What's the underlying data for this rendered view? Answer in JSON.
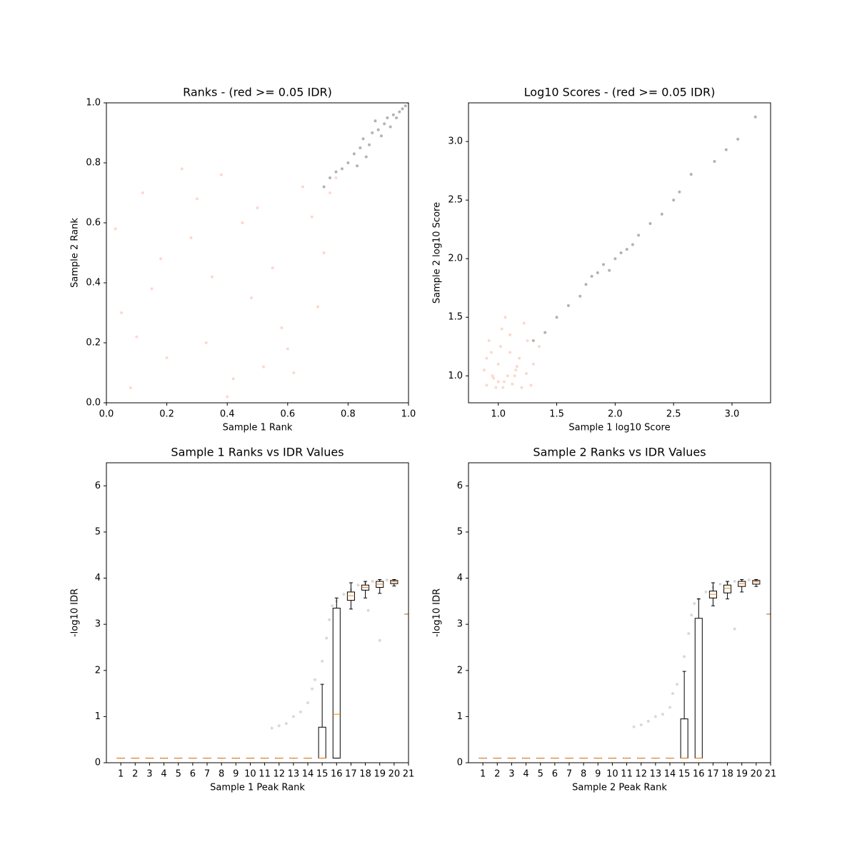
{
  "chart_data": [
    {
      "type": "scatter",
      "title": "Ranks - (red >= 0.05 IDR)",
      "xlabel": "Sample 1 Rank",
      "ylabel": "Sample 2 Rank",
      "xlim": [
        0,
        1
      ],
      "ylim": [
        0,
        1
      ],
      "xticks": [
        {
          "value": 0,
          "label": "0.0"
        },
        0.2,
        0.4,
        0.6,
        0.8,
        {
          "value": 1,
          "label": "1.0"
        }
      ],
      "yticks": [
        {
          "value": 0,
          "label": "0.0"
        },
        0.2,
        0.4,
        0.6,
        0.8,
        {
          "value": 1,
          "label": "1.0"
        }
      ],
      "series": [
        {
          "color": "#fa8f6f",
          "alpha": 0.35,
          "x": [
            0.05,
            0.12,
            0.2,
            0.28,
            0.35,
            0.42,
            0.5,
            0.58,
            0.65,
            0.72,
            0.08,
            0.15,
            0.25,
            0.33,
            0.45,
            0.55,
            0.62,
            0.7,
            0.76,
            0.03,
            0.18,
            0.3,
            0.4,
            0.48,
            0.6,
            0.68,
            0.1,
            0.38,
            0.52,
            0.74
          ],
          "values": [
            0.3,
            0.7,
            0.15,
            0.55,
            0.42,
            0.08,
            0.65,
            0.25,
            0.72,
            0.5,
            0.05,
            0.38,
            0.78,
            0.2,
            0.6,
            0.45,
            0.1,
            0.32,
            0.75,
            0.58,
            0.48,
            0.68,
            0.02,
            0.35,
            0.18,
            0.62,
            0.22,
            0.76,
            0.12,
            0.7
          ]
        },
        {
          "color": "#000000",
          "alpha": 0.3,
          "x": [
            0.72,
            0.74,
            0.76,
            0.78,
            0.8,
            0.82,
            0.84,
            0.85,
            0.87,
            0.88,
            0.9,
            0.91,
            0.92,
            0.93,
            0.94,
            0.95,
            0.96,
            0.97,
            0.98,
            0.99,
            0.86,
            0.89,
            0.83,
            1.0
          ],
          "values": [
            0.72,
            0.75,
            0.77,
            0.78,
            0.8,
            0.83,
            0.85,
            0.88,
            0.86,
            0.9,
            0.91,
            0.89,
            0.93,
            0.95,
            0.92,
            0.96,
            0.95,
            0.97,
            0.98,
            0.99,
            0.82,
            0.94,
            0.79,
            1.0
          ]
        }
      ]
    },
    {
      "type": "scatter",
      "title": "Log10 Scores - (red >= 0.05 IDR)",
      "xlabel": "Sample 1 log10 Score",
      "ylabel": "Sample 2 log10 Score",
      "xlim": [
        0.745,
        3.33
      ],
      "ylim": [
        0.77,
        3.33
      ],
      "xticks": [
        {
          "value": 1,
          "label": "1.0"
        },
        1.5,
        {
          "value": 2,
          "label": "2.0"
        },
        2.5,
        {
          "value": 3,
          "label": "3.0"
        }
      ],
      "yticks": [
        {
          "value": 1,
          "label": "1.0"
        },
        1.5,
        {
          "value": 2,
          "label": "2.0"
        },
        2.5,
        {
          "value": 3,
          "label": "3.0"
        }
      ],
      "series": [
        {
          "color": "#fa8f6f",
          "alpha": 0.35,
          "x": [
            0.9,
            0.95,
            1.0,
            1.05,
            1.1,
            1.15,
            1.2,
            1.25,
            1.3,
            0.92,
            0.98,
            1.03,
            1.08,
            1.12,
            1.18,
            1.22,
            0.88,
            0.94,
            1.0,
            1.06,
            1.14,
            1.28,
            1.35,
            0.96,
            1.02,
            1.1,
            1.16,
            0.9,
            1.04,
            1.24
          ],
          "values": [
            0.92,
            1.0,
            1.1,
            0.95,
            1.2,
            1.05,
            0.9,
            1.3,
            1.1,
            1.3,
            0.9,
            1.4,
            1.0,
            0.93,
            1.15,
            1.45,
            1.05,
            1.2,
            0.95,
            1.5,
            1.0,
            0.92,
            1.25,
            0.98,
            1.25,
            1.35,
            1.08,
            1.15,
            0.9,
            1.02
          ]
        },
        {
          "color": "#000000",
          "alpha": 0.3,
          "x": [
            1.3,
            1.4,
            1.5,
            1.6,
            1.7,
            1.75,
            1.8,
            1.85,
            1.9,
            1.95,
            2.0,
            2.05,
            2.1,
            2.15,
            2.2,
            2.3,
            2.4,
            2.5,
            2.55,
            2.65,
            2.85,
            2.95,
            3.05,
            3.2
          ],
          "values": [
            1.3,
            1.37,
            1.5,
            1.6,
            1.68,
            1.78,
            1.85,
            1.88,
            1.95,
            1.9,
            2.0,
            2.05,
            2.08,
            2.12,
            2.2,
            2.3,
            2.38,
            2.5,
            2.57,
            2.72,
            2.83,
            2.93,
            3.02,
            3.21
          ]
        }
      ]
    },
    {
      "type": "box",
      "title": "Sample 1 Ranks vs IDR Values",
      "xlabel": "Sample 1 Peak Rank",
      "ylabel": "-log10 IDR",
      "xlim": [
        0,
        21
      ],
      "ylim": [
        0,
        6.5
      ],
      "xticks": [
        1,
        2,
        3,
        4,
        5,
        6,
        7,
        8,
        9,
        10,
        11,
        12,
        13,
        14,
        15,
        16,
        17,
        18,
        19,
        20,
        21
      ],
      "yticks": [
        0,
        1,
        2,
        3,
        4,
        5,
        6
      ],
      "median_color": "#ff7f0e",
      "points": {
        "color": "#808080",
        "alpha": 0.3,
        "x": [
          11.5,
          12,
          12.5,
          13,
          13.5,
          14,
          14.3,
          14.5,
          15,
          15.3,
          15.5,
          15.7,
          16,
          16.5,
          17,
          17.5,
          18,
          18.5,
          19,
          19.5,
          20,
          19,
          18.2
        ],
        "values": [
          0.75,
          0.8,
          0.85,
          1.0,
          1.1,
          1.3,
          1.6,
          1.8,
          2.2,
          2.7,
          3.1,
          3.4,
          3.5,
          3.65,
          3.75,
          3.85,
          3.9,
          3.93,
          3.95,
          3.96,
          3.95,
          2.65,
          3.3
        ]
      },
      "boxes": [
        {
          "x": 1,
          "whislo": 0.1,
          "q1": 0.1,
          "median": 0.1,
          "q3": 0.1,
          "whishi": 0.1
        },
        {
          "x": 2,
          "whislo": 0.1,
          "q1": 0.1,
          "median": 0.1,
          "q3": 0.1,
          "whishi": 0.1
        },
        {
          "x": 3,
          "whislo": 0.1,
          "q1": 0.1,
          "median": 0.1,
          "q3": 0.1,
          "whishi": 0.1
        },
        {
          "x": 4,
          "whislo": 0.1,
          "q1": 0.1,
          "median": 0.1,
          "q3": 0.1,
          "whishi": 0.1
        },
        {
          "x": 5,
          "whislo": 0.1,
          "q1": 0.1,
          "median": 0.1,
          "q3": 0.1,
          "whishi": 0.1
        },
        {
          "x": 6,
          "whislo": 0.1,
          "q1": 0.1,
          "median": 0.1,
          "q3": 0.1,
          "whishi": 0.1
        },
        {
          "x": 7,
          "whislo": 0.1,
          "q1": 0.1,
          "median": 0.1,
          "q3": 0.1,
          "whishi": 0.1
        },
        {
          "x": 8,
          "whislo": 0.1,
          "q1": 0.1,
          "median": 0.1,
          "q3": 0.1,
          "whishi": 0.1
        },
        {
          "x": 9,
          "whislo": 0.1,
          "q1": 0.1,
          "median": 0.1,
          "q3": 0.1,
          "whishi": 0.1
        },
        {
          "x": 10,
          "whislo": 0.1,
          "q1": 0.1,
          "median": 0.1,
          "q3": 0.1,
          "whishi": 0.1
        },
        {
          "x": 11,
          "whislo": 0.1,
          "q1": 0.1,
          "median": 0.1,
          "q3": 0.1,
          "whishi": 0.1
        },
        {
          "x": 12,
          "whislo": 0.1,
          "q1": 0.1,
          "median": 0.1,
          "q3": 0.1,
          "whishi": 0.1
        },
        {
          "x": 13,
          "whislo": 0.1,
          "q1": 0.1,
          "median": 0.1,
          "q3": 0.1,
          "whishi": 0.1
        },
        {
          "x": 14,
          "whislo": 0.1,
          "q1": 0.1,
          "median": 0.1,
          "q3": 0.1,
          "whishi": 0.1
        },
        {
          "x": 15,
          "whislo": 0.1,
          "q1": 0.1,
          "median": 0.1,
          "q3": 0.77,
          "whishi": 1.7
        },
        {
          "x": 16,
          "whislo": 0.1,
          "q1": 0.1,
          "median": 1.05,
          "q3": 3.35,
          "whishi": 3.57
        },
        {
          "x": 17,
          "whislo": 3.33,
          "q1": 3.52,
          "median": 3.62,
          "q3": 3.7,
          "whishi": 3.9
        },
        {
          "x": 18,
          "whislo": 3.57,
          "q1": 3.74,
          "median": 3.8,
          "q3": 3.85,
          "whishi": 3.93
        },
        {
          "x": 19,
          "whislo": 3.67,
          "q1": 3.8,
          "median": 3.87,
          "q3": 3.93,
          "whishi": 3.97
        },
        {
          "x": 20,
          "whislo": 3.83,
          "q1": 3.88,
          "median": 3.92,
          "q3": 3.95,
          "whishi": 3.97
        },
        {
          "x": 21,
          "whislo": 3.22,
          "q1": 3.22,
          "median": 3.22,
          "q3": 3.22,
          "whishi": 3.22
        }
      ]
    },
    {
      "type": "box",
      "title": "Sample 2 Ranks vs IDR Values",
      "xlabel": "Sample 2 Peak Rank",
      "ylabel": "-log10 IDR",
      "xlim": [
        0,
        21
      ],
      "ylim": [
        0,
        6.5
      ],
      "xticks": [
        1,
        2,
        3,
        4,
        5,
        6,
        7,
        8,
        9,
        10,
        11,
        12,
        13,
        14,
        15,
        16,
        17,
        18,
        19,
        20,
        21
      ],
      "yticks": [
        0,
        1,
        2,
        3,
        4,
        5,
        6
      ],
      "median_color": "#ff7f0e",
      "points": {
        "color": "#808080",
        "alpha": 0.3,
        "x": [
          11.5,
          12,
          12.5,
          13,
          13.5,
          14,
          14.2,
          14.5,
          15,
          15.3,
          15.5,
          15.7,
          16,
          16.5,
          17,
          17.5,
          18,
          18.5,
          19,
          19.5,
          20,
          18.5
        ],
        "values": [
          0.78,
          0.82,
          0.9,
          1.0,
          1.05,
          1.2,
          1.5,
          1.7,
          2.3,
          2.8,
          3.2,
          3.45,
          3.55,
          3.7,
          3.8,
          3.87,
          3.9,
          3.93,
          3.95,
          3.96,
          3.94,
          2.9
        ]
      },
      "boxes": [
        {
          "x": 1,
          "whislo": 0.1,
          "q1": 0.1,
          "median": 0.1,
          "q3": 0.1,
          "whishi": 0.1
        },
        {
          "x": 2,
          "whislo": 0.1,
          "q1": 0.1,
          "median": 0.1,
          "q3": 0.1,
          "whishi": 0.1
        },
        {
          "x": 3,
          "whislo": 0.1,
          "q1": 0.1,
          "median": 0.1,
          "q3": 0.1,
          "whishi": 0.1
        },
        {
          "x": 4,
          "whislo": 0.1,
          "q1": 0.1,
          "median": 0.1,
          "q3": 0.1,
          "whishi": 0.1
        },
        {
          "x": 5,
          "whislo": 0.1,
          "q1": 0.1,
          "median": 0.1,
          "q3": 0.1,
          "whishi": 0.1
        },
        {
          "x": 6,
          "whislo": 0.1,
          "q1": 0.1,
          "median": 0.1,
          "q3": 0.1,
          "whishi": 0.1
        },
        {
          "x": 7,
          "whislo": 0.1,
          "q1": 0.1,
          "median": 0.1,
          "q3": 0.1,
          "whishi": 0.1
        },
        {
          "x": 8,
          "whislo": 0.1,
          "q1": 0.1,
          "median": 0.1,
          "q3": 0.1,
          "whishi": 0.1
        },
        {
          "x": 9,
          "whislo": 0.1,
          "q1": 0.1,
          "median": 0.1,
          "q3": 0.1,
          "whishi": 0.1
        },
        {
          "x": 10,
          "whislo": 0.1,
          "q1": 0.1,
          "median": 0.1,
          "q3": 0.1,
          "whishi": 0.1
        },
        {
          "x": 11,
          "whislo": 0.1,
          "q1": 0.1,
          "median": 0.1,
          "q3": 0.1,
          "whishi": 0.1
        },
        {
          "x": 12,
          "whislo": 0.1,
          "q1": 0.1,
          "median": 0.1,
          "q3": 0.1,
          "whishi": 0.1
        },
        {
          "x": 13,
          "whislo": 0.1,
          "q1": 0.1,
          "median": 0.1,
          "q3": 0.1,
          "whishi": 0.1
        },
        {
          "x": 14,
          "whislo": 0.1,
          "q1": 0.1,
          "median": 0.1,
          "q3": 0.1,
          "whishi": 0.1
        },
        {
          "x": 15,
          "whislo": 0.1,
          "q1": 0.1,
          "median": 0.1,
          "q3": 0.95,
          "whishi": 1.98
        },
        {
          "x": 16,
          "whislo": 0.1,
          "q1": 0.1,
          "median": 0.1,
          "q3": 3.13,
          "whishi": 3.55
        },
        {
          "x": 17,
          "whislo": 3.4,
          "q1": 3.57,
          "median": 3.65,
          "q3": 3.72,
          "whishi": 3.9
        },
        {
          "x": 18,
          "whislo": 3.55,
          "q1": 3.68,
          "median": 3.78,
          "q3": 3.85,
          "whishi": 3.93
        },
        {
          "x": 19,
          "whislo": 3.7,
          "q1": 3.82,
          "median": 3.88,
          "q3": 3.93,
          "whishi": 3.97
        },
        {
          "x": 20,
          "whislo": 3.82,
          "q1": 3.87,
          "median": 3.92,
          "q3": 3.95,
          "whishi": 3.97
        },
        {
          "x": 21,
          "whislo": 3.22,
          "q1": 3.22,
          "median": 3.22,
          "q3": 3.22,
          "whishi": 3.22
        }
      ]
    }
  ]
}
